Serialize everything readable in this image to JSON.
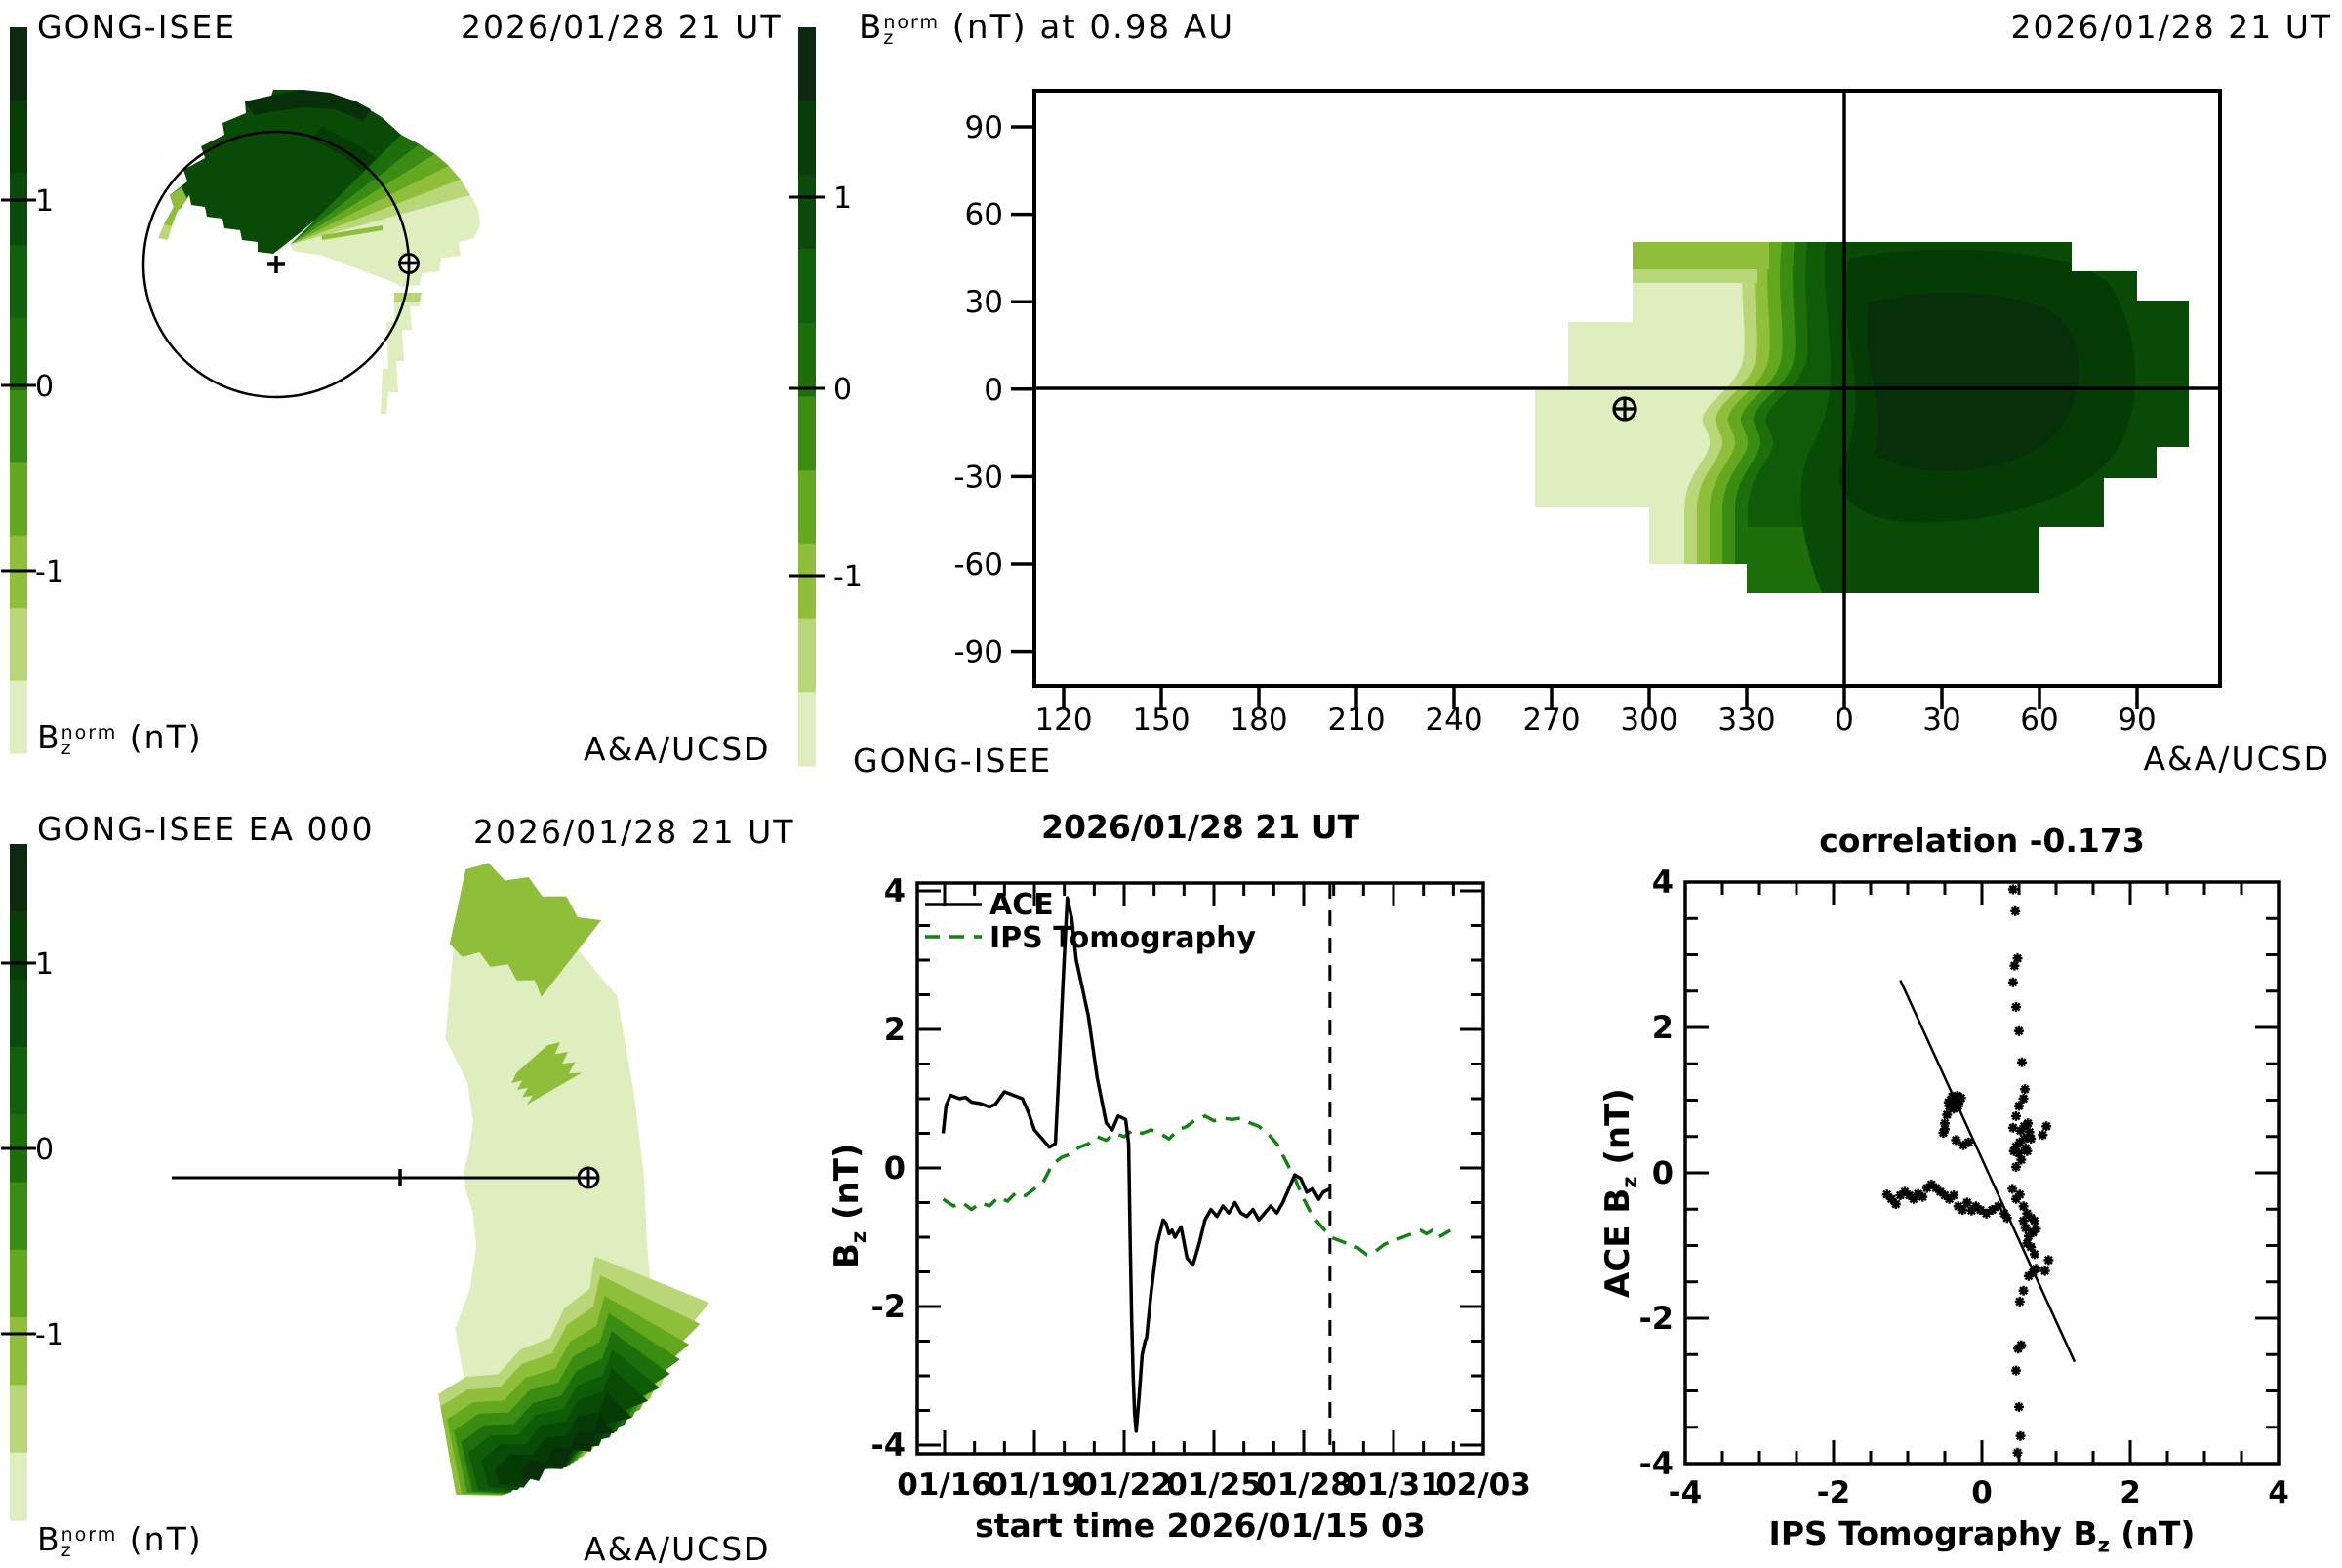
{
  "palette": {
    "c0": "#dfeebe",
    "c1": "#b9d778",
    "c2": "#8fbf3a",
    "c3": "#63a81f",
    "c4": "#3a8c12",
    "c5": "#1c6f0a",
    "c6": "#0f5c08",
    "c7": "#084a06",
    "c8": "#053b05",
    "c9": "#07300a",
    "colorbar_top_to_bottom": [
      "#0d2a10",
      "#083d08",
      "#0a4a0a",
      "#10600c",
      "#1c6f0a",
      "#3a8c12",
      "#63a81f",
      "#8fbf3a",
      "#b9d778",
      "#dfeebe"
    ],
    "ips_line_green": "#128212",
    "axis_black": "#000000"
  },
  "panel_tl": {
    "title": "GONG-ISEE",
    "date": "2026/01/28 21 UT",
    "credit": "A&A/UCSD",
    "cb_label": {
      "b": "B",
      "sub": "z",
      "sup": "norm",
      "rest": " (nT)"
    },
    "cb_ticks": [
      "1",
      "0",
      "-1"
    ]
  },
  "panel_tr": {
    "title": {
      "b": "B",
      "sub": "z",
      "sup": "norm",
      "rest": " (nT) at 0.98 AU"
    },
    "date": "2026/01/28 21 UT",
    "corner": "GONG-ISEE",
    "credit": "A&A/UCSD",
    "cb_ticks": [
      "1",
      "0",
      "-1"
    ]
  },
  "panel_bl": {
    "title": "GONG-ISEE EA 000",
    "date": "2026/01/28 21 UT",
    "credit": "A&A/UCSD",
    "cb_label": {
      "b": "B",
      "sub": "z",
      "sup": "norm",
      "rest": " (nT)"
    },
    "cb_ticks": [
      "1",
      "0",
      "-1"
    ]
  },
  "ts_panel": {
    "title": "2026/01/28 21 UT",
    "ylabel": {
      "b": "B",
      "sub": "z",
      "rest": " (nT)"
    },
    "xlabel": "start time 2026/01/15 03",
    "legend": [
      {
        "label": "ACE"
      },
      {
        "label": "IPS Tomography"
      }
    ]
  },
  "sc_panel": {
    "title": "correlation -0.173",
    "ylabel": {
      "pre": "ACE B",
      "sub": "z",
      "rest": " (nT)"
    },
    "xlabel": {
      "pre": "IPS Tomography B",
      "sub": "z",
      "rest": " (nT)"
    }
  },
  "chart_data": [
    {
      "id": "ecliptic-contour-view",
      "type": "heatmap",
      "title": "GONG-ISEE",
      "timestamp": "2026/01/28 21 UT",
      "credit": "A&A/UCSD",
      "quantity": "Bz_norm (nT)",
      "colorbar_ticks": [
        1,
        0,
        -1
      ],
      "features": {
        "sun_marker": "+",
        "earth_marker": "circled-plus",
        "earth_orbit_circle": true,
        "description": "polar ecliptic cut: dark green (positive Bz) fan in north, pale green (negative Bz) sector toward Earth"
      }
    },
    {
      "id": "bz-sky-map-098AU",
      "type": "heatmap",
      "title": "Bz_norm (nT) at 0.98 AU",
      "timestamp": "2026/01/28 21 UT",
      "corner_label": "GONG-ISEE",
      "credit": "A&A/UCSD",
      "x_ticks": [
        "120",
        "150",
        "180",
        "210",
        "240",
        "270",
        "300",
        "330",
        "0",
        "30",
        "60",
        "90"
      ],
      "y_ticks": [
        "90",
        "60",
        "30",
        "0",
        "-30",
        "-60",
        "-90"
      ],
      "xlim_deg_longitude": [
        110,
        110
      ],
      "ylim_deg_latitude": [
        -90,
        90
      ],
      "earth_symbol_position": {
        "longitude": 292,
        "latitude": -7
      },
      "reference_lines": {
        "latitude_0": true,
        "longitude_0": true
      },
      "description": "pale (negative) cell near Earth longitude ~295, dark positive region lon 330-90, data coverage lat -70..50"
    },
    {
      "id": "fisheye-ea000",
      "type": "heatmap",
      "title": "GONG-ISEE EA 000",
      "timestamp": "2026/01/28 21 UT",
      "credit": "A&A/UCSD",
      "quantity": "Bz_norm (nT)",
      "colorbar_ticks": [
        1,
        0,
        -1
      ],
      "features": {
        "sun_earth_line": true,
        "earth_marker": "circled-plus",
        "description": "fisheye fan east of Sun: mostly pale (negative), dark positive arc to the south"
      }
    },
    {
      "id": "bz-timeseries",
      "type": "line",
      "title": "2026/01/28 21 UT",
      "xlabel": "start time 2026/01/15 03",
      "ylabel": "Bz (nT)",
      "ylim": [
        -4,
        4
      ],
      "y_tick_labels": [
        "4",
        "2",
        "0",
        "-2",
        "-4"
      ],
      "x_tick_labels": [
        "01/16",
        "01/19",
        "01/22",
        "01/25",
        "01/28",
        "01/31",
        "02/03"
      ],
      "x_tick_days": [
        1,
        4,
        7,
        10,
        13,
        16,
        19
      ],
      "x_range_days": [
        0.9,
        19.0
      ],
      "now_marker_day": 13.875,
      "series": [
        {
          "name": "ACE",
          "style": "solid-black",
          "points": [
            [
              0.95,
              0.5
            ],
            [
              1.05,
              0.9
            ],
            [
              1.2,
              1.05
            ],
            [
              1.5,
              1.0
            ],
            [
              1.7,
              1.02
            ],
            [
              1.9,
              0.95
            ],
            [
              2.2,
              0.93
            ],
            [
              2.5,
              0.88
            ],
            [
              2.7,
              0.92
            ],
            [
              3.0,
              1.1
            ],
            [
              3.3,
              1.05
            ],
            [
              3.6,
              1.0
            ],
            [
              3.8,
              0.8
            ],
            [
              4.0,
              0.55
            ],
            [
              4.2,
              0.45
            ],
            [
              4.5,
              0.3
            ],
            [
              4.7,
              0.35
            ],
            [
              4.8,
              1.2
            ],
            [
              4.95,
              2.6
            ],
            [
              5.1,
              3.9
            ],
            [
              5.25,
              3.6
            ],
            [
              5.4,
              3.0
            ],
            [
              5.6,
              2.6
            ],
            [
              5.8,
              2.2
            ],
            [
              6.1,
              1.3
            ],
            [
              6.4,
              0.65
            ],
            [
              6.6,
              0.55
            ],
            [
              6.8,
              0.75
            ],
            [
              7.05,
              0.7
            ],
            [
              7.15,
              0.35
            ],
            [
              7.2,
              -1.0
            ],
            [
              7.25,
              -2.2
            ],
            [
              7.3,
              -3.0
            ],
            [
              7.35,
              -3.55
            ],
            [
              7.4,
              -3.8
            ],
            [
              7.5,
              -3.3
            ],
            [
              7.6,
              -2.7
            ],
            [
              7.7,
              -2.5
            ],
            [
              7.75,
              -2.45
            ],
            [
              7.9,
              -1.8
            ],
            [
              8.1,
              -1.1
            ],
            [
              8.3,
              -0.75
            ],
            [
              8.4,
              -0.8
            ],
            [
              8.5,
              -0.95
            ],
            [
              8.6,
              -0.9
            ],
            [
              8.7,
              -1.0
            ],
            [
              8.9,
              -0.85
            ],
            [
              9.1,
              -1.3
            ],
            [
              9.3,
              -1.4
            ],
            [
              9.5,
              -1.1
            ],
            [
              9.7,
              -0.75
            ],
            [
              9.9,
              -0.6
            ],
            [
              10.1,
              -0.7
            ],
            [
              10.3,
              -0.55
            ],
            [
              10.5,
              -0.65
            ],
            [
              10.7,
              -0.5
            ],
            [
              10.9,
              -0.65
            ],
            [
              11.1,
              -0.7
            ],
            [
              11.3,
              -0.6
            ],
            [
              11.5,
              -0.75
            ],
            [
              11.7,
              -0.65
            ],
            [
              11.9,
              -0.55
            ],
            [
              12.1,
              -0.65
            ],
            [
              12.3,
              -0.5
            ],
            [
              12.5,
              -0.3
            ],
            [
              12.7,
              -0.1
            ],
            [
              12.9,
              -0.15
            ],
            [
              13.1,
              -0.35
            ],
            [
              13.3,
              -0.3
            ],
            [
              13.5,
              -0.45
            ],
            [
              13.65,
              -0.35
            ],
            [
              13.875,
              -0.3
            ]
          ]
        },
        {
          "name": "IPS Tomography",
          "style": "dashed-green",
          "points": [
            [
              0.95,
              -0.45
            ],
            [
              1.3,
              -0.55
            ],
            [
              1.6,
              -0.5
            ],
            [
              1.9,
              -0.6
            ],
            [
              2.2,
              -0.5
            ],
            [
              2.5,
              -0.55
            ],
            [
              2.8,
              -0.42
            ],
            [
              3.1,
              -0.48
            ],
            [
              3.4,
              -0.35
            ],
            [
              3.7,
              -0.4
            ],
            [
              4.0,
              -0.3
            ],
            [
              4.3,
              -0.2
            ],
            [
              4.6,
              0.05
            ],
            [
              4.9,
              0.15
            ],
            [
              5.2,
              0.2
            ],
            [
              5.5,
              0.3
            ],
            [
              5.8,
              0.35
            ],
            [
              6.1,
              0.45
            ],
            [
              6.4,
              0.4
            ],
            [
              6.7,
              0.5
            ],
            [
              7.0,
              0.45
            ],
            [
              7.3,
              0.55
            ],
            [
              7.6,
              0.5
            ],
            [
              7.9,
              0.55
            ],
            [
              8.2,
              0.5
            ],
            [
              8.5,
              0.42
            ],
            [
              8.8,
              0.55
            ],
            [
              9.1,
              0.6
            ],
            [
              9.4,
              0.7
            ],
            [
              9.7,
              0.75
            ],
            [
              10.0,
              0.68
            ],
            [
              10.3,
              0.72
            ],
            [
              10.6,
              0.7
            ],
            [
              10.9,
              0.72
            ],
            [
              11.2,
              0.65
            ],
            [
              11.5,
              0.6
            ],
            [
              11.8,
              0.5
            ],
            [
              12.1,
              0.35
            ],
            [
              12.4,
              0.1
            ],
            [
              12.7,
              -0.15
            ],
            [
              13.0,
              -0.45
            ],
            [
              13.3,
              -0.7
            ],
            [
              13.6,
              -0.85
            ],
            [
              13.9,
              -1.0
            ],
            [
              14.2,
              -1.05
            ],
            [
              14.5,
              -1.1
            ],
            [
              14.8,
              -1.15
            ],
            [
              15.1,
              -1.25
            ],
            [
              15.4,
              -1.2
            ],
            [
              15.7,
              -1.1
            ],
            [
              16.0,
              -1.05
            ],
            [
              16.3,
              -1.0
            ],
            [
              16.6,
              -0.95
            ],
            [
              16.9,
              -0.9
            ],
            [
              17.1,
              -0.95
            ],
            [
              17.3,
              -0.9
            ],
            [
              17.5,
              -1.0
            ],
            [
              17.7,
              -0.95
            ],
            [
              17.9,
              -0.9
            ]
          ]
        }
      ]
    },
    {
      "id": "bz-correlation",
      "type": "scatter",
      "title": "correlation -0.173",
      "xlabel": "IPS Tomography Bz (nT)",
      "ylabel": "ACE Bz (nT)",
      "xlim": [
        -4,
        4
      ],
      "ylim": [
        -4,
        4
      ],
      "x_tick_labels": [
        "-4",
        "-2",
        "0",
        "2",
        "4"
      ],
      "y_tick_labels": [
        "4",
        "2",
        "0",
        "-2",
        "-4"
      ],
      "fit_line": [
        [
          -1.1,
          2.65
        ],
        [
          1.25,
          -2.6
        ]
      ],
      "points": [
        [
          -0.52,
          0.55
        ],
        [
          -0.5,
          0.68
        ],
        [
          -0.47,
          0.8
        ],
        [
          -0.44,
          0.92
        ],
        [
          -0.42,
          1.0
        ],
        [
          -0.4,
          1.05
        ],
        [
          -0.37,
          0.97
        ],
        [
          -0.35,
          1.02
        ],
        [
          -0.33,
          1.06
        ],
        [
          -0.3,
          0.99
        ],
        [
          -0.28,
          1.03
        ],
        [
          -0.32,
          0.92
        ],
        [
          -0.38,
          0.88
        ],
        [
          -0.45,
          0.97
        ],
        [
          -0.5,
          0.6
        ],
        [
          -0.35,
          0.45
        ],
        [
          -0.25,
          0.38
        ],
        [
          -0.18,
          0.42
        ],
        [
          0.42,
          3.9
        ],
        [
          0.45,
          3.6
        ],
        [
          0.48,
          2.95
        ],
        [
          0.44,
          2.85
        ],
        [
          0.42,
          2.62
        ],
        [
          0.46,
          2.28
        ],
        [
          0.5,
          1.95
        ],
        [
          0.54,
          1.52
        ],
        [
          0.58,
          1.15
        ],
        [
          0.56,
          1.02
        ],
        [
          0.5,
          0.92
        ],
        [
          0.46,
          0.78
        ],
        [
          0.42,
          0.62
        ],
        [
          0.52,
          0.58
        ],
        [
          0.57,
          0.64
        ],
        [
          0.62,
          0.68
        ],
        [
          0.64,
          0.56
        ],
        [
          0.57,
          0.47
        ],
        [
          0.51,
          0.42
        ],
        [
          0.46,
          0.36
        ],
        [
          0.43,
          0.3
        ],
        [
          0.5,
          0.27
        ],
        [
          0.59,
          0.34
        ],
        [
          0.66,
          0.47
        ],
        [
          0.61,
          0.3
        ],
        [
          0.53,
          0.18
        ],
        [
          0.46,
          0.08
        ],
        [
          0.41,
          -0.22
        ],
        [
          0.46,
          -0.36
        ],
        [
          0.51,
          -0.3
        ],
        [
          0.56,
          -0.46
        ],
        [
          0.61,
          -0.56
        ],
        [
          0.66,
          -0.62
        ],
        [
          0.71,
          -0.66
        ],
        [
          0.73,
          -0.77
        ],
        [
          0.69,
          -0.82
        ],
        [
          0.63,
          -0.87
        ],
        [
          0.59,
          -0.76
        ],
        [
          0.56,
          -0.66
        ],
        [
          0.61,
          -0.97
        ],
        [
          0.66,
          -1.02
        ],
        [
          0.71,
          -1.12
        ],
        [
          0.73,
          -1.32
        ],
        [
          0.69,
          -1.37
        ],
        [
          0.63,
          -1.42
        ],
        [
          0.56,
          -1.62
        ],
        [
          0.51,
          -1.77
        ],
        [
          0.53,
          -2.37
        ],
        [
          0.49,
          -2.42
        ],
        [
          0.46,
          -2.72
        ],
        [
          0.5,
          -3.22
        ],
        [
          0.52,
          -3.62
        ],
        [
          0.48,
          -3.85
        ],
        [
          0.82,
          0.52
        ],
        [
          0.87,
          0.64
        ],
        [
          0.9,
          -1.2
        ],
        [
          0.85,
          -1.35
        ],
        [
          -1.28,
          -0.3
        ],
        [
          -1.22,
          -0.36
        ],
        [
          -1.16,
          -0.43
        ],
        [
          -1.1,
          -0.31
        ],
        [
          -1.04,
          -0.26
        ],
        [
          -0.98,
          -0.31
        ],
        [
          -0.92,
          -0.36
        ],
        [
          -0.86,
          -0.29
        ],
        [
          -0.8,
          -0.33
        ],
        [
          -0.74,
          -0.21
        ],
        [
          -0.68,
          -0.16
        ],
        [
          -0.62,
          -0.21
        ],
        [
          -0.56,
          -0.26
        ],
        [
          -0.5,
          -0.31
        ],
        [
          -0.44,
          -0.36
        ],
        [
          -0.38,
          -0.31
        ],
        [
          -0.32,
          -0.46
        ],
        [
          -0.26,
          -0.51
        ],
        [
          -0.2,
          -0.41
        ],
        [
          -0.14,
          -0.52
        ],
        [
          -0.08,
          -0.46
        ],
        [
          -0.02,
          -0.51
        ],
        [
          0.06,
          -0.56
        ],
        [
          0.14,
          -0.51
        ],
        [
          0.22,
          -0.46
        ],
        [
          0.3,
          -0.56
        ],
        [
          0.34,
          -0.62
        ]
      ]
    }
  ]
}
